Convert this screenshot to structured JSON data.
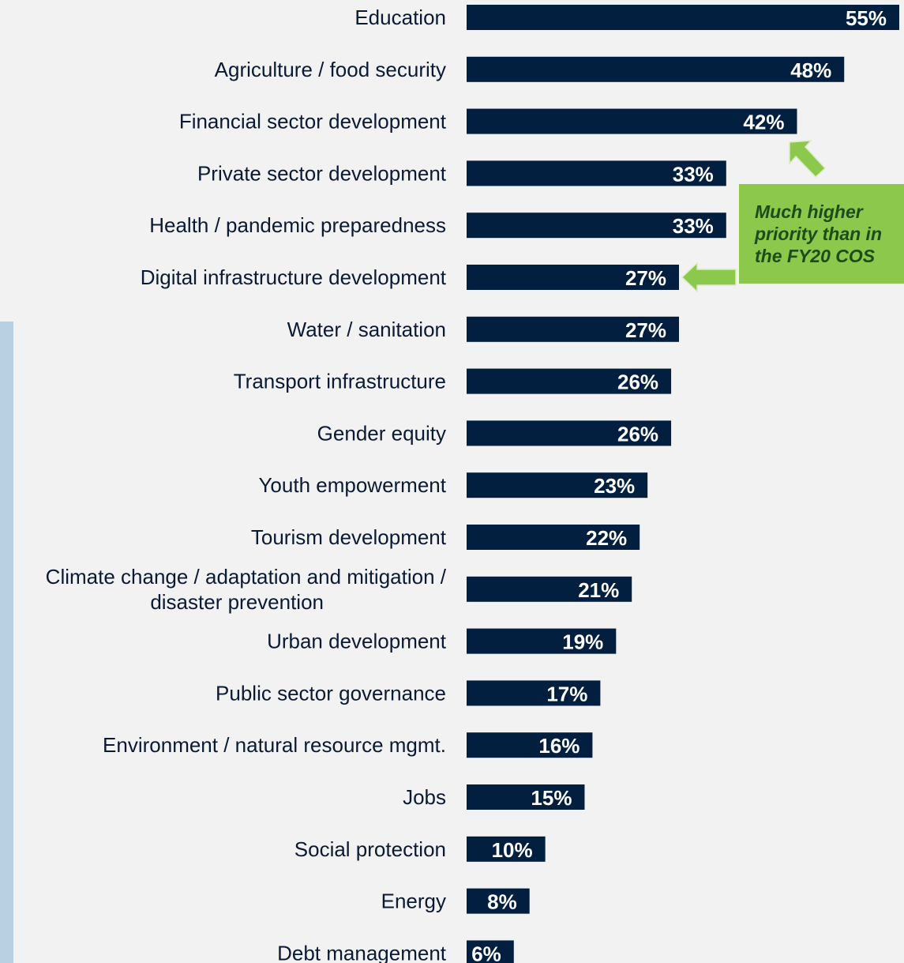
{
  "chart_data": {
    "type": "bar",
    "orientation": "horizontal",
    "categories": [
      [
        "Education"
      ],
      [
        "Agriculture / food security"
      ],
      [
        "Financial sector development"
      ],
      [
        "Private sector development"
      ],
      [
        "Health / pandemic preparedness"
      ],
      [
        "Digital infrastructure development"
      ],
      [
        "Water / sanitation"
      ],
      [
        "Transport infrastructure"
      ],
      [
        "Gender equity"
      ],
      [
        "Youth empowerment"
      ],
      [
        "Tourism development"
      ],
      [
        "Climate change / adaptation and mitigation /",
        "disaster prevention"
      ],
      [
        "Urban development"
      ],
      [
        "Public sector governance"
      ],
      [
        "Environment / natural resource mgmt."
      ],
      [
        "Jobs"
      ],
      [
        "Social protection"
      ],
      [
        "Energy"
      ],
      [
        "Debt management"
      ]
    ],
    "values": [
      55,
      48,
      42,
      33,
      33,
      27,
      27,
      26,
      26,
      23,
      22,
      21,
      19,
      17,
      16,
      15,
      10,
      8,
      6
    ],
    "value_suffix": "%",
    "bar_color": "#021f40",
    "xlim": [
      0,
      55
    ],
    "grid": false,
    "legend": "none",
    "annotations": [
      {
        "text": "Much higher priority than in the FY20 COS",
        "points_to": [
          "Financial sector development",
          "Digital infrastructure development"
        ],
        "color": "#8cc84b"
      }
    ]
  }
}
